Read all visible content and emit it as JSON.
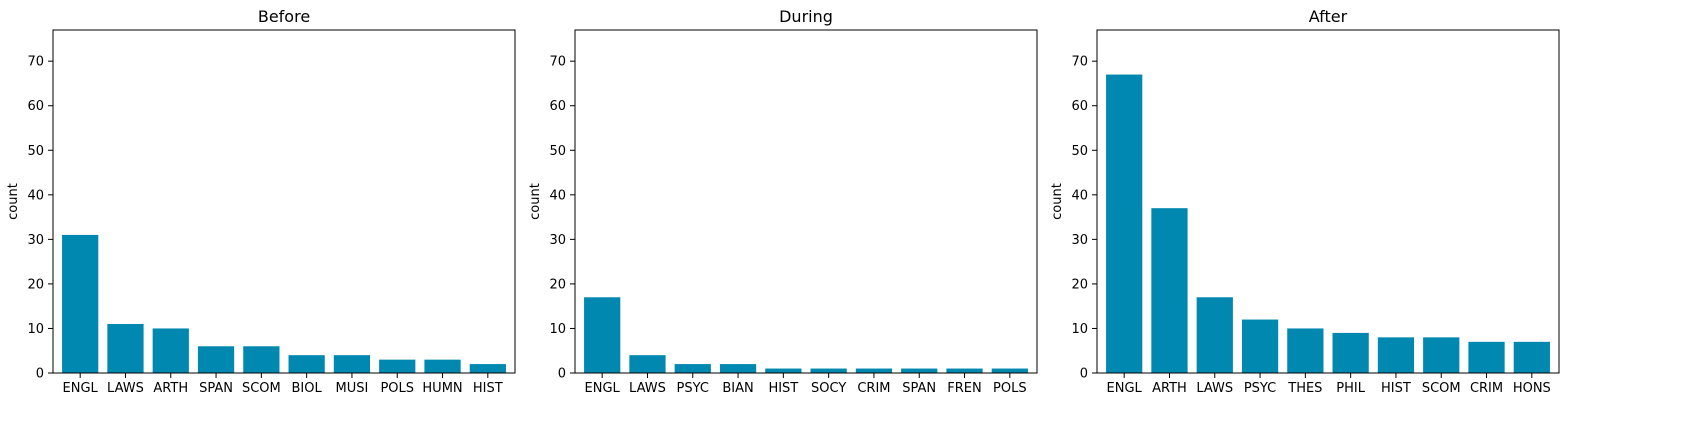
{
  "bar_color": "#0088B0",
  "chart_data": [
    {
      "type": "bar",
      "title": "Before",
      "xlabel": "",
      "ylabel": "count",
      "ylim": [
        0,
        77
      ],
      "yticks": [
        0,
        10,
        20,
        30,
        40,
        50,
        60,
        70
      ],
      "categories": [
        "ENGL",
        "LAWS",
        "ARTH",
        "SPAN",
        "SCOM",
        "BIOL",
        "MUSI",
        "POLS",
        "HUMN",
        "HIST"
      ],
      "values": [
        31,
        11,
        10,
        6,
        6,
        4,
        4,
        3,
        3,
        2
      ]
    },
    {
      "type": "bar",
      "title": "During",
      "xlabel": "",
      "ylabel": "count",
      "ylim": [
        0,
        77
      ],
      "yticks": [
        0,
        10,
        20,
        30,
        40,
        50,
        60,
        70
      ],
      "categories": [
        "ENGL",
        "LAWS",
        "PSYC",
        "BIAN",
        "HIST",
        "SOCY",
        "CRIM",
        "SPAN",
        "FREN",
        "POLS"
      ],
      "values": [
        17,
        4,
        2,
        2,
        1,
        1,
        1,
        1,
        1,
        1
      ]
    },
    {
      "type": "bar",
      "title": "After",
      "xlabel": "",
      "ylabel": "count",
      "ylim": [
        0,
        77
      ],
      "yticks": [
        0,
        10,
        20,
        30,
        40,
        50,
        60,
        70
      ],
      "categories": [
        "ENGL",
        "ARTH",
        "LAWS",
        "PSYC",
        "THES",
        "PHIL",
        "HIST",
        "SCOM",
        "CRIM",
        "HONS"
      ],
      "values": [
        67,
        37,
        17,
        12,
        10,
        9,
        8,
        8,
        7,
        7
      ]
    }
  ]
}
